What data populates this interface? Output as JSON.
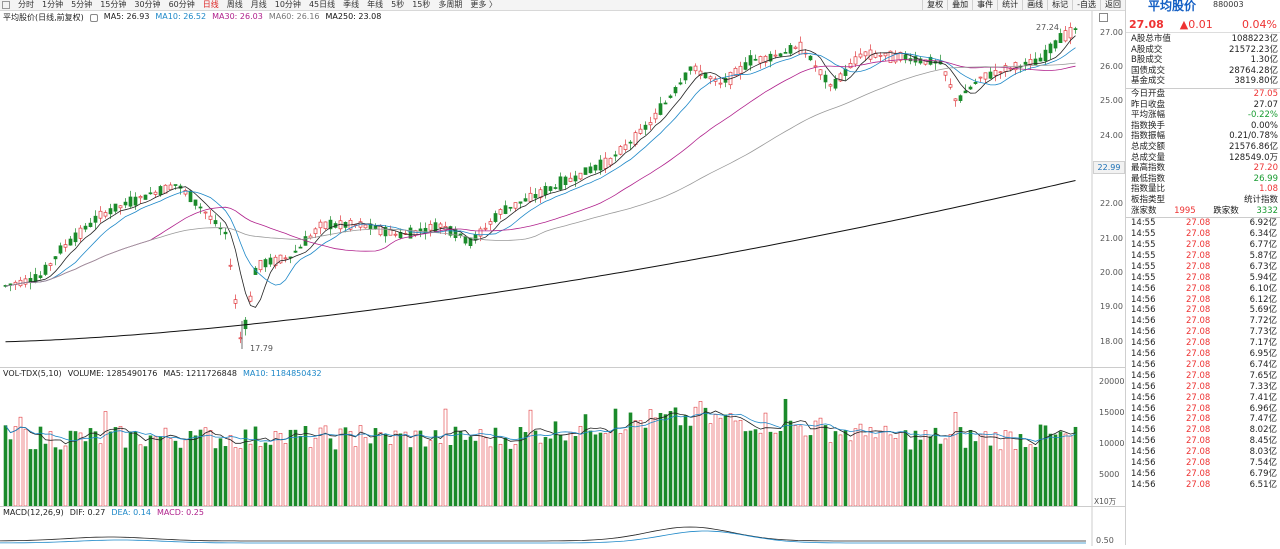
{
  "toolbar": {
    "periods": [
      "分时",
      "1分钟",
      "5分钟",
      "15分钟",
      "30分钟",
      "60分钟",
      "日线",
      "周线",
      "月线",
      "10分钟",
      "45日线",
      "季线",
      "年线",
      "5秒",
      "15秒",
      "多周期",
      "更多 〉"
    ],
    "active_period": "日线",
    "right_buttons": [
      "复权",
      "叠加",
      "事件",
      "统计",
      "画线",
      "标记",
      "-自选",
      "返回"
    ]
  },
  "kline_legend": {
    "title": "平均股价(日线,前复权)",
    "ma5": "MA5: 26.93",
    "ma10": "MA10: 26.52",
    "ma30": "MA30: 26.03",
    "ma60": "MA60: 26.16",
    "ma250": "MA250: 23.08",
    "colors": {
      "ma5": "#222222",
      "ma10": "#1e88c8",
      "ma30": "#b0218c",
      "ma60": "#999999",
      "ma250": "#111111"
    }
  },
  "kline_axis": [
    "27.00",
    "26.00",
    "25.00",
    "24.00",
    "23.00",
    "22.00",
    "21.00",
    "20.00",
    "19.00",
    "18.00"
  ],
  "kline_annotations": {
    "high": "27.24",
    "low": "17.79",
    "ma250_marker": "22.99"
  },
  "volume_legend": {
    "title": "VOL-TDX(5,10)",
    "volume": "VOLUME: 1285490176",
    "ma5": "MA5: 1211726848",
    "ma10": "MA10: 1184850432"
  },
  "volume_axis": [
    "20000",
    "15000",
    "10000",
    "5000"
  ],
  "volume_unit": "X10万",
  "macd_legend": {
    "title": "MACD(12,26,9)",
    "dif": "DIF: 0.27",
    "dea": "DEA: 0.14",
    "macd": "MACD: 0.25"
  },
  "macd_axis": [
    "0.50"
  ],
  "side": {
    "name": "平均股价",
    "code": "880003",
    "price": "27.08",
    "change": "▲0.01",
    "pct": "0.04%",
    "stats1": [
      {
        "k": "A股总市值",
        "v": "1088223亿"
      },
      {
        "k": "A股成交",
        "v": "21572.23亿"
      },
      {
        "k": "B股成交",
        "v": "1.30亿"
      },
      {
        "k": "国债成交",
        "v": "28764.28亿"
      },
      {
        "k": "基金成交",
        "v": "3819.80亿"
      }
    ],
    "stats2": [
      {
        "k": "今日开盘",
        "v": "27.05",
        "c": "red"
      },
      {
        "k": "昨日收盘",
        "v": "27.07",
        "c": ""
      },
      {
        "k": "平均涨幅",
        "v": "-0.22%",
        "c": "green"
      },
      {
        "k": "指数换手",
        "v": "0.00%",
        "c": ""
      },
      {
        "k": "指数振幅",
        "v": "0.21/0.78%",
        "c": ""
      },
      {
        "k": "总成交额",
        "v": "21576.86亿",
        "c": ""
      },
      {
        "k": "总成交量",
        "v": "128549.0万",
        "c": ""
      },
      {
        "k": "最高指数",
        "v": "27.20",
        "c": "red"
      },
      {
        "k": "最低指数",
        "v": "26.99",
        "c": "green"
      },
      {
        "k": "指数量比",
        "v": "1.08",
        "c": "red"
      },
      {
        "k": "板指类型",
        "v": "统计指数",
        "c": ""
      }
    ],
    "updown": {
      "up_label": "涨家数",
      "up": "1995",
      "down_label": "跌家数",
      "down": "3332"
    },
    "ticks": [
      [
        "14:55",
        "27.08",
        "6.92亿"
      ],
      [
        "14:55",
        "27.08",
        "6.34亿"
      ],
      [
        "14:55",
        "27.08",
        "6.77亿"
      ],
      [
        "14:55",
        "27.08",
        "5.87亿"
      ],
      [
        "14:55",
        "27.08",
        "6.73亿"
      ],
      [
        "14:55",
        "27.08",
        "5.94亿"
      ],
      [
        "14:56",
        "27.08",
        "6.10亿"
      ],
      [
        "14:56",
        "27.08",
        "6.12亿"
      ],
      [
        "14:56",
        "27.08",
        "5.69亿"
      ],
      [
        "14:56",
        "27.08",
        "7.72亿"
      ],
      [
        "14:56",
        "27.08",
        "7.73亿"
      ],
      [
        "14:56",
        "27.08",
        "7.17亿"
      ],
      [
        "14:56",
        "27.08",
        "6.95亿"
      ],
      [
        "14:56",
        "27.08",
        "6.74亿"
      ],
      [
        "14:56",
        "27.08",
        "7.65亿"
      ],
      [
        "14:56",
        "27.08",
        "7.33亿"
      ],
      [
        "14:56",
        "27.08",
        "7.41亿"
      ],
      [
        "14:56",
        "27.08",
        "6.96亿"
      ],
      [
        "14:56",
        "27.08",
        "7.47亿"
      ],
      [
        "14:56",
        "27.08",
        "8.02亿"
      ],
      [
        "14:56",
        "27.08",
        "8.45亿"
      ],
      [
        "14:56",
        "27.08",
        "8.03亿"
      ],
      [
        "14:56",
        "27.08",
        "7.54亿"
      ],
      [
        "14:56",
        "27.08",
        "6.79亿"
      ],
      [
        "14:56",
        "27.08",
        "6.51亿"
      ]
    ]
  }
}
